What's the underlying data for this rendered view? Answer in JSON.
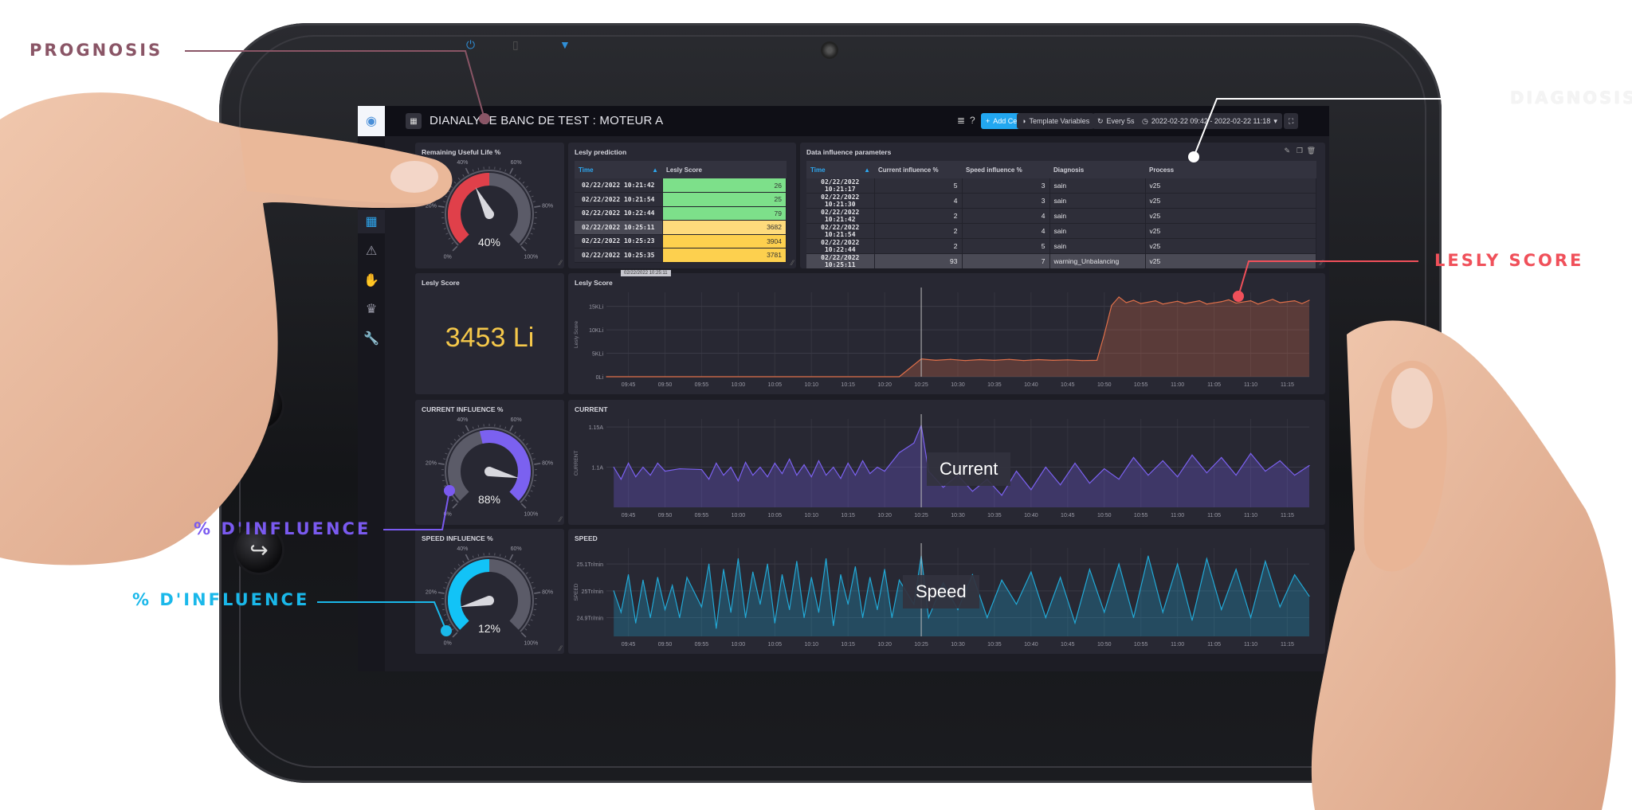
{
  "callouts": {
    "prognosis": {
      "label": "PROGNOSIS",
      "color": "#8a5566"
    },
    "diagnosis": {
      "label": "DIAGNOSIS",
      "color": "#f4f4f4"
    },
    "lesly_score": {
      "label": "LESLY SCORE",
      "color": "#f0505a"
    },
    "current_influence": {
      "label": "% D'INFLUENCE",
      "color": "#7a5af0"
    },
    "speed_influence": {
      "label": "% D'INFLUENCE",
      "color": "#1ab8ea"
    }
  },
  "tablet": {
    "status_icons": [
      "power-icon",
      "battery-icon",
      "signal-icon"
    ],
    "buttons": [
      "home-icon",
      "back-icon"
    ]
  },
  "sidebar": {
    "items": [
      {
        "icon": "table-icon",
        "glyph": "▦",
        "active": true
      },
      {
        "icon": "warning-icon",
        "glyph": "⚠"
      },
      {
        "icon": "hand-icon",
        "glyph": "✋"
      },
      {
        "icon": "crown-icon",
        "glyph": "♛"
      },
      {
        "icon": "wrench-icon",
        "glyph": "🔧"
      }
    ]
  },
  "header": {
    "title": "DIANALYSE BANC DE TEST : MOTEUR A",
    "add_cell": "Add Cell",
    "template_variables": "Template Variables",
    "refresh": "Every 5s",
    "time_range": "2022-02-22 09:42 - 2022-02-22 11:18",
    "accent": "#22a7f0"
  },
  "rul_gauge": {
    "title": "Remaining Useful Life %",
    "value": 40,
    "value_label": "40%",
    "color": "#e0404a",
    "ticks": [
      "0%",
      "20%",
      "40%",
      "60%",
      "80%",
      "100%"
    ]
  },
  "current_gauge": {
    "title": "CURRENT INFLUENCE %",
    "value": 88,
    "value_label": "88%",
    "color": "#7b61f0",
    "ticks": [
      "0%",
      "20%",
      "40%",
      "60%",
      "80%",
      "100%"
    ]
  },
  "speed_gauge": {
    "title": "SPEED INFLUENCE %",
    "value": 12,
    "value_label": "12%",
    "color": "#12c3f7",
    "ticks": [
      "0%",
      "20%",
      "40%",
      "60%",
      "80%",
      "100%"
    ]
  },
  "lesly_prediction": {
    "title": "Lesly prediction",
    "columns": [
      "Time",
      "Lesly Score"
    ],
    "rows": [
      {
        "time": "02/22/2022 10:21:42",
        "score": "26",
        "color": "#7de08a"
      },
      {
        "time": "02/22/2022 10:21:54",
        "score": "25",
        "color": "#7de08a"
      },
      {
        "time": "02/22/2022 10:22:44",
        "score": "79",
        "color": "#7de08a"
      },
      {
        "time": "02/22/2022 10:25:11",
        "score": "3682",
        "color": "#fedb7c",
        "selected": true
      },
      {
        "time": "02/22/2022 10:25:23",
        "score": "3904",
        "color": "#fdd04e"
      },
      {
        "time": "02/22/2022 10:25:35",
        "score": "3781",
        "color": "#fdd04e"
      }
    ]
  },
  "influence_table": {
    "title": "Data influence parameters",
    "columns": [
      "Time",
      "Current influence %",
      "Speed influence %",
      "Diagnosis",
      "Process"
    ],
    "rows": [
      [
        "02/22/2022 10:21:17",
        "5",
        "3",
        "sain",
        "v25"
      ],
      [
        "02/22/2022 10:21:30",
        "4",
        "3",
        "sain",
        "v25"
      ],
      [
        "02/22/2022 10:21:42",
        "2",
        "4",
        "sain",
        "v25"
      ],
      [
        "02/22/2022 10:21:54",
        "2",
        "4",
        "sain",
        "v25"
      ],
      [
        "02/22/2022 10:22:44",
        "2",
        "5",
        "sain",
        "v25"
      ],
      [
        "02/22/2022 10:25:11",
        "93",
        "7",
        "warning_Unbalancing",
        "v25"
      ]
    ],
    "selected_row": 5
  },
  "lesly_single": {
    "title": "Lesly Score",
    "value": "3453 Li"
  },
  "hover_time": "02/22/2022 10:25:11",
  "x_ticks": [
    "09:45",
    "09:50",
    "09:55",
    "10:00",
    "10:05",
    "10:10",
    "10:15",
    "10:20",
    "10:25",
    "10:30",
    "10:35",
    "10:40",
    "10:45",
    "10:50",
    "10:55",
    "11:00",
    "11:05",
    "11:10",
    "11:15"
  ],
  "overlays": {
    "current": "Current",
    "speed": "Speed"
  },
  "chart_data": [
    {
      "type": "area",
      "title": "Lesly Score",
      "ylabel": "Lesly Score",
      "color": "#e0704a",
      "xlim": [
        "09:42",
        "11:18"
      ],
      "ylim": [
        0,
        18000
      ],
      "yticks": [
        {
          "v": 0,
          "label": "0Li"
        },
        {
          "v": 5000,
          "label": "5KLi"
        },
        {
          "v": 10000,
          "label": "10KLi"
        },
        {
          "v": 15000,
          "label": "15KLi"
        }
      ],
      "points": [
        [
          "09:42",
          0
        ],
        [
          "10:22",
          0
        ],
        [
          "10:25",
          3800
        ],
        [
          "10:27",
          3500
        ],
        [
          "10:29",
          3700
        ],
        [
          "10:31",
          3450
        ],
        [
          "10:33",
          3650
        ],
        [
          "10:35",
          3500
        ],
        [
          "10:37",
          3700
        ],
        [
          "10:39",
          3450
        ],
        [
          "10:41",
          3650
        ],
        [
          "10:43",
          3500
        ],
        [
          "10:45",
          3600
        ],
        [
          "10:47",
          3450
        ],
        [
          "10:49",
          3500
        ],
        [
          "10:50",
          9000
        ],
        [
          "10:51",
          15200
        ],
        [
          "10:52",
          17000
        ],
        [
          "10:53",
          15800
        ],
        [
          "10:54",
          16300
        ],
        [
          "10:55",
          15600
        ],
        [
          "10:57",
          16200
        ],
        [
          "10:58",
          15500
        ],
        [
          "11:00",
          16100
        ],
        [
          "11:01",
          15600
        ],
        [
          "11:03",
          16200
        ],
        [
          "11:04",
          15500
        ],
        [
          "11:06",
          16000
        ],
        [
          "11:07",
          16400
        ],
        [
          "11:08",
          15700
        ],
        [
          "11:10",
          16200
        ],
        [
          "11:11",
          15500
        ],
        [
          "11:13",
          16500
        ],
        [
          "11:14",
          15800
        ],
        [
          "11:16",
          16200
        ],
        [
          "11:17",
          15600
        ],
        [
          "11:18",
          16300
        ]
      ]
    },
    {
      "type": "area",
      "title": "CURRENT",
      "ylabel": "CURRENT",
      "color": "#7b61f0",
      "xlim": [
        "09:42",
        "11:18"
      ],
      "ylim": [
        1.05,
        1.16
      ],
      "yticks": [
        {
          "v": 1.1,
          "label": "1.1A"
        },
        {
          "v": 1.15,
          "label": "1.15A"
        }
      ],
      "points": [
        [
          "09:43",
          1.1
        ],
        [
          "09:44",
          1.085
        ],
        [
          "09:45",
          1.105
        ],
        [
          "09:46",
          1.088
        ],
        [
          "09:47",
          1.1
        ],
        [
          "09:48",
          1.09
        ],
        [
          "09:49",
          1.105
        ],
        [
          "09:50",
          1.095
        ],
        [
          "09:52",
          1.098
        ],
        [
          "09:55",
          1.097
        ],
        [
          "09:56",
          1.085
        ],
        [
          "09:57",
          1.105
        ],
        [
          "09:58",
          1.09
        ],
        [
          "09:59",
          1.1
        ],
        [
          "10:00",
          1.083
        ],
        [
          "10:01",
          1.106
        ],
        [
          "10:02",
          1.09
        ],
        [
          "10:03",
          1.1
        ],
        [
          "10:04",
          1.088
        ],
        [
          "10:05",
          1.105
        ],
        [
          "10:06",
          1.092
        ],
        [
          "10:07",
          1.11
        ],
        [
          "10:08",
          1.09
        ],
        [
          "10:09",
          1.103
        ],
        [
          "10:10",
          1.088
        ],
        [
          "10:11",
          1.108
        ],
        [
          "10:12",
          1.09
        ],
        [
          "10:13",
          1.1
        ],
        [
          "10:14",
          1.086
        ],
        [
          "10:15",
          1.105
        ],
        [
          "10:16",
          1.09
        ],
        [
          "10:17",
          1.108
        ],
        [
          "10:18",
          1.092
        ],
        [
          "10:19",
          1.1
        ],
        [
          "10:20",
          1.095
        ],
        [
          "10:22",
          1.118
        ],
        [
          "10:24",
          1.13
        ],
        [
          "10:25",
          1.152
        ],
        [
          "10:26",
          1.095
        ],
        [
          "10:28",
          1.075
        ],
        [
          "10:30",
          1.09
        ],
        [
          "10:32",
          1.07
        ],
        [
          "10:34",
          1.085
        ],
        [
          "10:36",
          1.065
        ],
        [
          "10:38",
          1.095
        ],
        [
          "10:40",
          1.072
        ],
        [
          "10:42",
          1.1
        ],
        [
          "10:44",
          1.078
        ],
        [
          "10:46",
          1.105
        ],
        [
          "10:48",
          1.08
        ],
        [
          "10:50",
          1.098
        ],
        [
          "10:52",
          1.085
        ],
        [
          "10:54",
          1.112
        ],
        [
          "10:56",
          1.09
        ],
        [
          "10:58",
          1.108
        ],
        [
          "11:00",
          1.088
        ],
        [
          "11:02",
          1.115
        ],
        [
          "11:04",
          1.093
        ],
        [
          "11:06",
          1.112
        ],
        [
          "11:08",
          1.09
        ],
        [
          "11:10",
          1.117
        ],
        [
          "11:12",
          1.095
        ],
        [
          "11:14",
          1.108
        ],
        [
          "11:16",
          1.09
        ],
        [
          "11:18",
          1.102
        ]
      ]
    },
    {
      "type": "area",
      "title": "SPEED",
      "ylabel": "SPEED",
      "color": "#22a9d6",
      "xlim": [
        "09:42",
        "11:18"
      ],
      "ylim": [
        24.83,
        25.16
      ],
      "yticks": [
        {
          "v": 24.9,
          "label": "24.9Tr/min"
        },
        {
          "v": 25,
          "label": "25Tr/min"
        },
        {
          "v": 25.1,
          "label": "25.1Tr/min"
        }
      ],
      "points": [
        [
          "09:43",
          25.0
        ],
        [
          "09:44",
          24.92
        ],
        [
          "09:45",
          25.06
        ],
        [
          "09:46",
          24.88
        ],
        [
          "09:47",
          25.04
        ],
        [
          "09:48",
          24.9
        ],
        [
          "09:49",
          25.05
        ],
        [
          "09:50",
          24.93
        ],
        [
          "09:51",
          25.02
        ],
        [
          "09:52",
          24.9
        ],
        [
          "09:53",
          25.05
        ],
        [
          "09:55",
          24.94
        ],
        [
          "09:56",
          25.1
        ],
        [
          "09:57",
          24.86
        ],
        [
          "09:58",
          25.08
        ],
        [
          "09:59",
          24.92
        ],
        [
          "10:00",
          25.12
        ],
        [
          "10:01",
          24.9
        ],
        [
          "10:02",
          25.07
        ],
        [
          "10:03",
          24.95
        ],
        [
          "10:04",
          25.1
        ],
        [
          "10:05",
          24.88
        ],
        [
          "10:06",
          25.06
        ],
        [
          "10:07",
          24.93
        ],
        [
          "10:08",
          25.11
        ],
        [
          "10:09",
          24.9
        ],
        [
          "10:10",
          25.05
        ],
        [
          "10:11",
          24.92
        ],
        [
          "10:12",
          25.12
        ],
        [
          "10:13",
          24.87
        ],
        [
          "10:14",
          25.06
        ],
        [
          "10:15",
          24.95
        ],
        [
          "10:16",
          25.09
        ],
        [
          "10:17",
          24.9
        ],
        [
          "10:18",
          25.05
        ],
        [
          "10:19",
          24.93
        ],
        [
          "10:20",
          25.08
        ],
        [
          "10:21",
          24.9
        ],
        [
          "10:22",
          25.04
        ],
        [
          "10:24",
          24.95
        ],
        [
          "10:25",
          25.13
        ],
        [
          "10:26",
          24.9
        ],
        [
          "10:28",
          25.03
        ],
        [
          "10:30",
          24.93
        ],
        [
          "10:32",
          25.06
        ],
        [
          "10:34",
          24.9
        ],
        [
          "10:36",
          25.04
        ],
        [
          "10:38",
          24.95
        ],
        [
          "10:40",
          25.07
        ],
        [
          "10:42",
          24.9
        ],
        [
          "10:44",
          25.05
        ],
        [
          "10:46",
          24.88
        ],
        [
          "10:48",
          25.08
        ],
        [
          "10:50",
          24.92
        ],
        [
          "10:52",
          25.1
        ],
        [
          "10:54",
          24.9
        ],
        [
          "10:56",
          25.13
        ],
        [
          "10:58",
          24.92
        ],
        [
          "11:00",
          25.1
        ],
        [
          "11:02",
          24.89
        ],
        [
          "11:04",
          25.12
        ],
        [
          "11:06",
          24.93
        ],
        [
          "11:08",
          25.08
        ],
        [
          "11:10",
          24.9
        ],
        [
          "11:12",
          25.11
        ],
        [
          "11:14",
          24.94
        ],
        [
          "11:16",
          25.06
        ],
        [
          "11:18",
          24.98
        ]
      ]
    }
  ]
}
